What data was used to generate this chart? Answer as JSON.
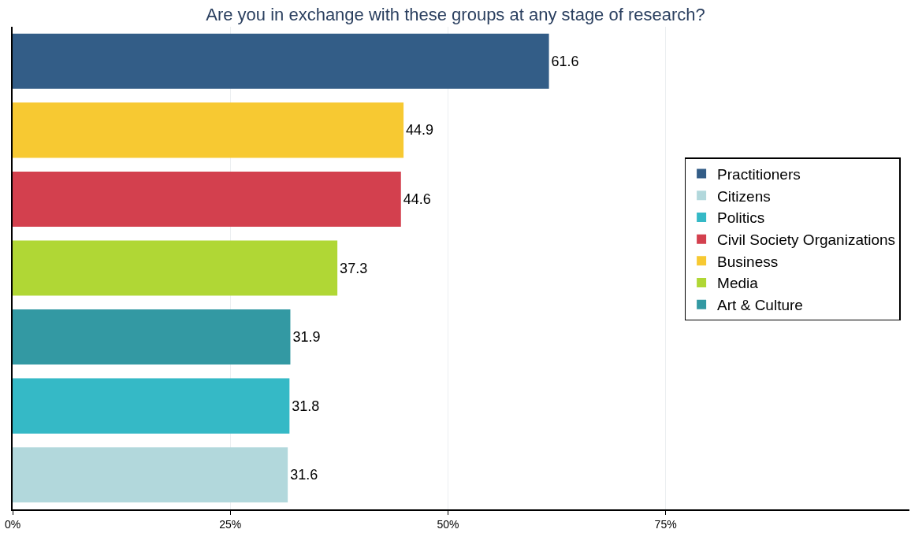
{
  "chart_data": {
    "type": "bar",
    "orientation": "horizontal",
    "title": "Are you in exchange with these groups at any stage of research?",
    "categories": [
      null,
      null,
      null,
      null,
      null,
      null,
      null
    ],
    "series": [
      {
        "name": "Practitioners",
        "color": "#335d87",
        "values": [
          61.6,
          null,
          null,
          null,
          null,
          null,
          null
        ]
      },
      {
        "name": "Citizens",
        "color": "#b2d8dc",
        "values": [
          null,
          null,
          null,
          null,
          null,
          null,
          31.6
        ]
      },
      {
        "name": "Politics",
        "color": "#35b9c6",
        "values": [
          null,
          null,
          null,
          null,
          null,
          31.8,
          null
        ]
      },
      {
        "name": "Civil Society Organizations",
        "color": "#d3404e",
        "values": [
          null,
          null,
          44.6,
          null,
          null,
          null,
          null
        ]
      },
      {
        "name": "Business",
        "color": "#f7c932",
        "values": [
          null,
          44.9,
          null,
          null,
          null,
          null,
          null
        ]
      },
      {
        "name": "Media",
        "color": "#b0d735",
        "values": [
          null,
          null,
          null,
          37.3,
          null,
          null,
          null
        ]
      },
      {
        "name": "Art & Culture",
        "color": "#3399a3",
        "values": [
          null,
          null,
          null,
          null,
          31.9,
          null,
          null
        ]
      }
    ],
    "xlim": [
      0,
      103
    ],
    "xticks": [
      {
        "value": 0,
        "label": "0%"
      },
      {
        "value": 25,
        "label": "25%"
      },
      {
        "value": 50,
        "label": "50%"
      },
      {
        "value": 75,
        "label": "75%"
      }
    ],
    "grid": "x",
    "legend": "right",
    "data_labels": true
  }
}
